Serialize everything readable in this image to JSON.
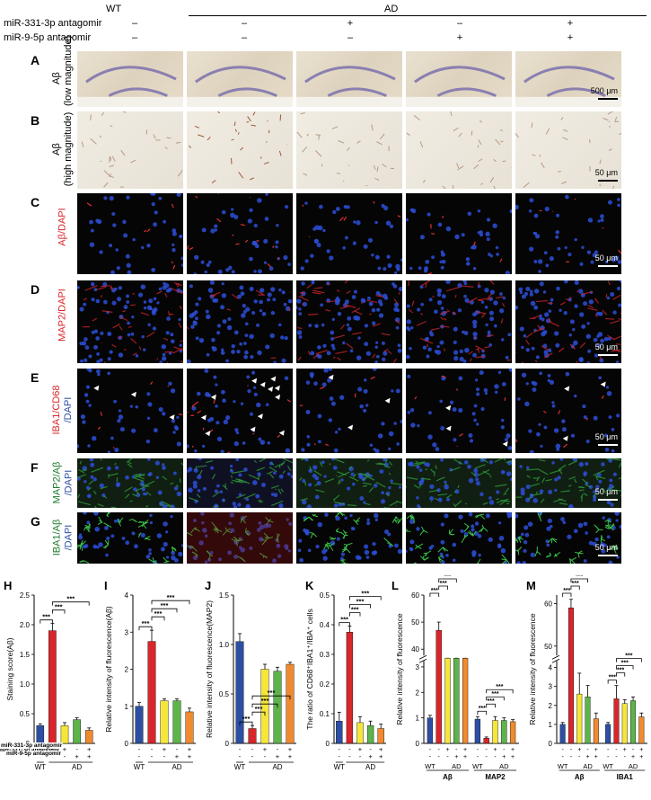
{
  "header": {
    "wt_label": "WT",
    "ad_label": "AD",
    "row1_label": "miR-331-3p antagomir",
    "row2_label": "miR-9-5p antagomir",
    "row1_signs": [
      "–",
      "–",
      "+",
      "–",
      "+"
    ],
    "row2_signs": [
      "–",
      "–",
      "–",
      "+",
      "+"
    ]
  },
  "rows": [
    {
      "letter": "A",
      "label": "Aβ",
      "sublabel": "(low magnitude)",
      "scale": "500 μm"
    },
    {
      "letter": "B",
      "label": "Aβ",
      "sublabel": "(high magnitude)",
      "scale": "50 μm"
    },
    {
      "letter": "C",
      "label": "Aβ/DAPI",
      "scale": "50 μm"
    },
    {
      "letter": "D",
      "label": "MAP2/DAPI",
      "scale": "50 μm"
    },
    {
      "letter": "E",
      "label": "IBA1/CD68",
      "sublabel": "/DAPI",
      "scale": "50 μm"
    },
    {
      "letter": "F",
      "label": "MAP2/Aβ",
      "sublabel": "/DAPI",
      "scale": "50 μm"
    },
    {
      "letter": "G",
      "label": "IBA1/Aβ",
      "sublabel": "/DAPI",
      "scale": "50 μm"
    }
  ],
  "colors": {
    "wt": "#2d4fa3",
    "ad": "#d8262a",
    "ad_331": "#f5e63a",
    "ad_95": "#5db44a",
    "ad_both": "#f08a30"
  },
  "chart_data": [
    {
      "letter": "H",
      "type": "bar",
      "ylabel": "Staining score(Aβ)",
      "ylim": [
        0,
        2.5
      ],
      "yticks": [
        0,
        0.5,
        1.0,
        1.5,
        2.0,
        2.5
      ],
      "values": [
        0.3,
        1.9,
        0.3,
        0.4,
        0.22
      ],
      "errors": [
        0.03,
        0.12,
        0.05,
        0.03,
        0.04
      ],
      "sig": [
        "***",
        "***",
        "***"
      ],
      "row1_label": "miR-331-3p antagomir",
      "row2_label": "miR-9-5p antagomir",
      "group_labels": [
        "WT",
        "AD"
      ]
    },
    {
      "letter": "I",
      "type": "bar",
      "ylabel": "Relative intensity of fluorescence(Aβ)",
      "ylim": [
        0,
        4
      ],
      "yticks": [
        0,
        1,
        2,
        3,
        4
      ],
      "values": [
        1.0,
        2.75,
        1.15,
        1.15,
        0.85
      ],
      "errors": [
        0.1,
        0.3,
        0.05,
        0.05,
        0.1
      ],
      "sig": [
        "***",
        "***",
        "***",
        "***"
      ],
      "group_labels": [
        "WT",
        "AD"
      ]
    },
    {
      "letter": "J",
      "type": "bar",
      "ylabel": "Relative intensity of fluorescence(MAP2)",
      "ylim": [
        0,
        1.5
      ],
      "yticks": [
        0,
        0.5,
        1.0,
        1.5
      ],
      "values": [
        1.03,
        0.15,
        0.75,
        0.73,
        0.8
      ],
      "errors": [
        0.08,
        0.03,
        0.05,
        0.04,
        0.02
      ],
      "sig": [
        "***",
        "***",
        "***",
        "***"
      ],
      "group_labels": [
        "WT",
        "AD"
      ]
    },
    {
      "letter": "K",
      "type": "bar",
      "ylabel": "The ratio of CD68⁺IBA1⁺/IBA⁺ cells",
      "ylim": [
        0,
        0.5
      ],
      "yticks": [
        0,
        0.1,
        0.2,
        0.3,
        0.4,
        0.5
      ],
      "values": [
        0.075,
        0.375,
        0.07,
        0.06,
        0.05
      ],
      "errors": [
        0.03,
        0.02,
        0.02,
        0.015,
        0.015
      ],
      "sig": [
        "***",
        "***",
        "***",
        "***"
      ],
      "group_labels": [
        "WT",
        "AD"
      ]
    },
    {
      "letter": "L",
      "type": "bar",
      "ylabel": "Relative intensity of fluorescence",
      "yticks": [
        "0",
        "1",
        "2",
        "3",
        "40",
        "50",
        "60"
      ],
      "groups": [
        {
          "name": "Aβ",
          "values": [
            1.0,
            47,
            5.2,
            4.2,
            3.9
          ],
          "errors": [
            0.1,
            3,
            0.5,
            0.5,
            0.4
          ]
        },
        {
          "name": "MAP2",
          "values": [
            0.95,
            0.2,
            0.9,
            0.9,
            0.85
          ],
          "errors": [
            0.1,
            0.05,
            0.15,
            0.1,
            0.08
          ]
        }
      ],
      "sig": [
        "***",
        "***",
        "***",
        "***"
      ],
      "group_labels": [
        "WT",
        "AD"
      ]
    },
    {
      "letter": "M",
      "type": "bar",
      "ylabel": "Relative intensity of fluorescence",
      "yticks": [
        "0",
        "1",
        "2",
        "3",
        "4",
        "50",
        "60"
      ],
      "groups": [
        {
          "name": "Aβ",
          "values": [
            1.0,
            59,
            2.6,
            2.45,
            1.3
          ],
          "errors": [
            0.1,
            2,
            1.1,
            0.6,
            0.3
          ]
        },
        {
          "name": "IBA1",
          "values": [
            1.0,
            2.35,
            2.1,
            2.25,
            1.4
          ],
          "errors": [
            0.1,
            0.7,
            0.2,
            0.2,
            0.2
          ]
        }
      ],
      "sig": [
        "***",
        "***",
        "***",
        "***"
      ],
      "group_labels": [
        "WT",
        "AD"
      ]
    }
  ]
}
